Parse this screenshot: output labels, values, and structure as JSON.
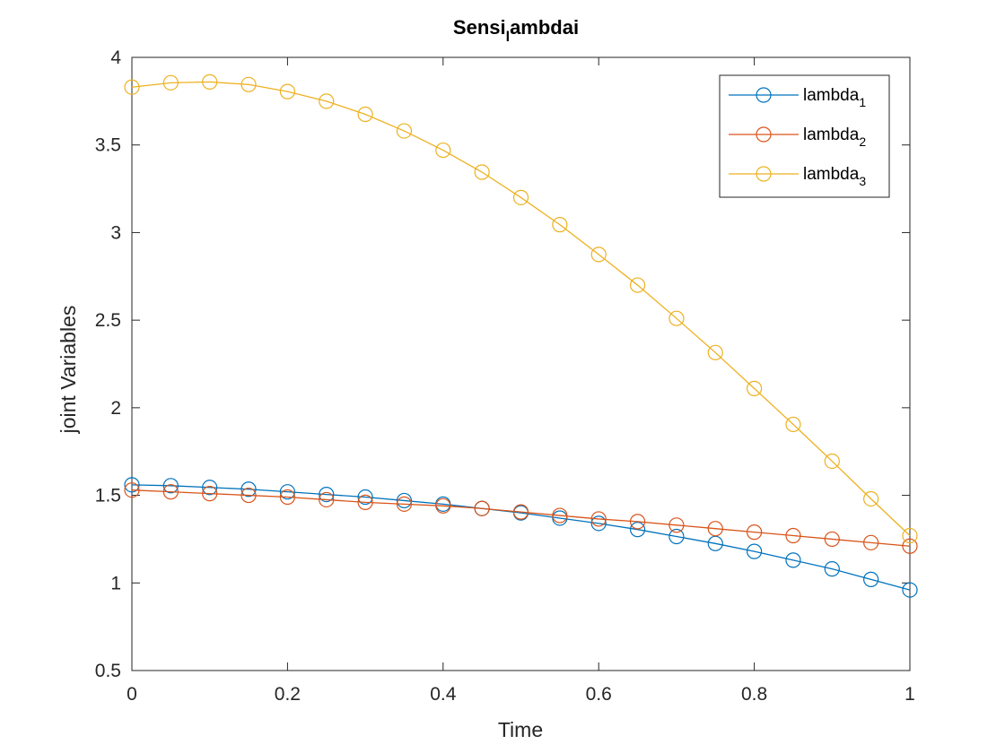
{
  "chart_data": {
    "type": "line",
    "title_main": "Sensi",
    "title_sub": "l",
    "title_tail": "ambdai",
    "xlabel": "Time",
    "ylabel": "joint Variables",
    "xlim": [
      0,
      1
    ],
    "ylim": [
      0.5,
      4
    ],
    "xticks": [
      0,
      0.2,
      0.4,
      0.6,
      0.8,
      1
    ],
    "xtick_labels": [
      "0",
      "0.2",
      "0.4",
      "0.6",
      "0.8",
      "1"
    ],
    "yticks": [
      0.5,
      1,
      1.5,
      2,
      2.5,
      3,
      3.5,
      4
    ],
    "ytick_labels": [
      "0.5",
      "1",
      "1.5",
      "2",
      "2.5",
      "3",
      "3.5",
      "4"
    ],
    "marker": "circle",
    "legend_position": "top-right",
    "x": [
      0,
      0.05,
      0.1,
      0.15,
      0.2,
      0.25,
      0.3,
      0.35,
      0.4,
      0.45,
      0.5,
      0.55,
      0.6,
      0.65,
      0.7,
      0.75,
      0.8,
      0.85,
      0.9,
      0.95,
      1
    ],
    "series": [
      {
        "name_base": "lambda",
        "name_sub": "1",
        "color": "#0072BD",
        "values": [
          1.56,
          1.555,
          1.545,
          1.535,
          1.52,
          1.505,
          1.49,
          1.47,
          1.45,
          1.425,
          1.4,
          1.37,
          1.34,
          1.305,
          1.265,
          1.225,
          1.18,
          1.13,
          1.08,
          1.02,
          0.96
        ]
      },
      {
        "name_base": "lambda",
        "name_sub": "2",
        "color": "#D95319",
        "values": [
          1.53,
          1.52,
          1.51,
          1.5,
          1.49,
          1.475,
          1.46,
          1.45,
          1.44,
          1.425,
          1.405,
          1.385,
          1.365,
          1.35,
          1.33,
          1.31,
          1.29,
          1.27,
          1.25,
          1.23,
          1.21
        ]
      },
      {
        "name_base": "lambda",
        "name_sub": "3",
        "color": "#EDB120",
        "values": [
          3.83,
          3.855,
          3.86,
          3.845,
          3.805,
          3.75,
          3.675,
          3.58,
          3.47,
          3.345,
          3.2,
          3.045,
          2.875,
          2.7,
          2.51,
          2.315,
          2.11,
          1.905,
          1.695,
          1.48,
          1.27
        ]
      }
    ]
  }
}
